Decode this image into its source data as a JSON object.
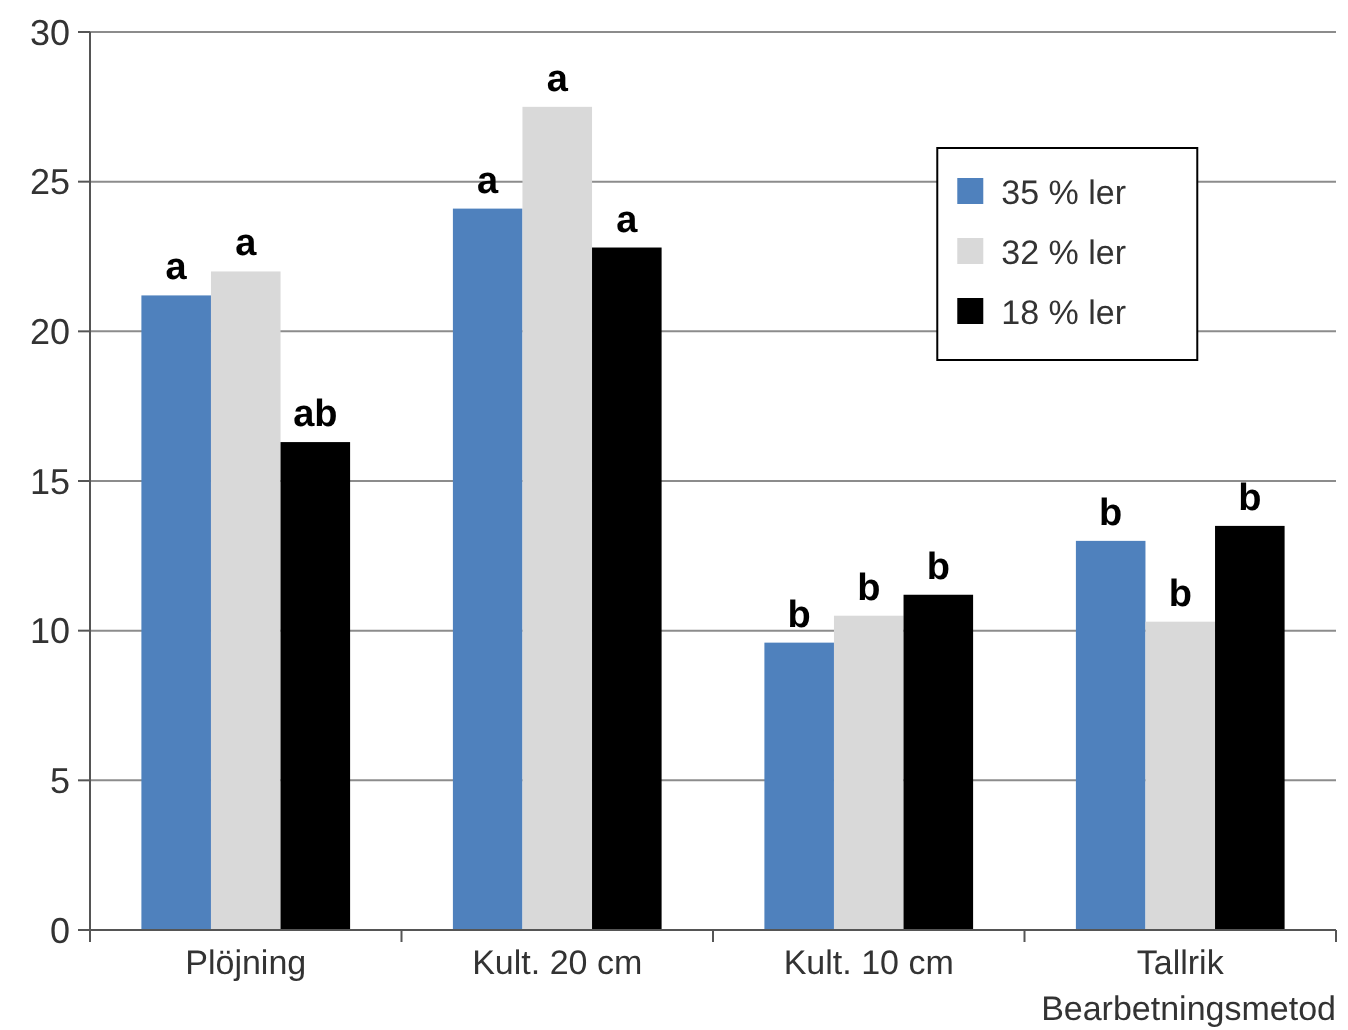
{
  "chart_data": {
    "type": "bar",
    "xlabel": "Bearbetningsmetod",
    "categories": [
      "Plöjning",
      "Kult. 20 cm",
      "Kult. 10 cm",
      "Tallrik"
    ],
    "series": [
      {
        "name": "35 % ler",
        "color": "#4f81bd",
        "values": [
          21.2,
          24.1,
          9.6,
          13.0
        ],
        "value_labels": [
          "a",
          "a",
          "b",
          "b"
        ]
      },
      {
        "name": "32 % ler",
        "color": "#d9d9d9",
        "values": [
          22.0,
          27.5,
          10.5,
          10.3
        ],
        "value_labels": [
          "a",
          "a",
          "b",
          "b"
        ]
      },
      {
        "name": "18 % ler",
        "color": "#000000",
        "values": [
          16.3,
          22.8,
          11.2,
          13.5
        ],
        "value_labels": [
          "ab",
          "a",
          "b",
          "b"
        ]
      }
    ],
    "ylim": [
      0,
      30
    ],
    "yticks": [
      0,
      5,
      10,
      15,
      20,
      25,
      30
    ],
    "grid": "y",
    "legend": "top right"
  }
}
